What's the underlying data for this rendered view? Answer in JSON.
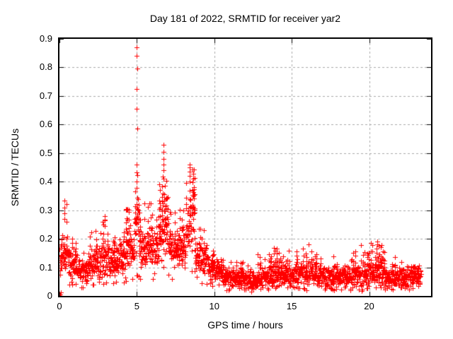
{
  "chart_data": {
    "type": "scatter",
    "title": "Day 181 of 2022, SRMTID for receiver yar2",
    "xlabel": "GPS time / hours",
    "ylabel": "SRMTID / TECUs",
    "xlim": [
      0,
      24
    ],
    "ylim": [
      0,
      0.9
    ],
    "xtick_values": [
      0,
      5,
      10,
      15,
      20
    ],
    "xtick_labels": [
      "0",
      "5",
      "10",
      "15",
      "20"
    ],
    "ytick_values": [
      0,
      0.1,
      0.2,
      0.3,
      0.4,
      0.5,
      0.6,
      0.7,
      0.8,
      0.9
    ],
    "ytick_labels": [
      "0",
      "0.1",
      "0.2",
      "0.3",
      "0.4",
      "0.5",
      "0.6",
      "0.7",
      "0.8",
      "0.9"
    ],
    "grid": true,
    "grid_color": "#a8a8a8",
    "axis_color": "#000000",
    "marker": {
      "shape": "plus",
      "color": "#ff0000",
      "size": 7
    },
    "time_range_hours": [
      0.02,
      23.35
    ],
    "sampling_step_hours": 0.011111,
    "seed": 181,
    "band_profile": [
      [
        0.0,
        0.15,
        0.1,
        0.055,
        0.2,
        0.05
      ],
      [
        0.15,
        0.55,
        0.155,
        0.065,
        0.33,
        0.12
      ],
      [
        0.55,
        1.15,
        0.115,
        0.05,
        0.26,
        0.07
      ],
      [
        1.15,
        1.85,
        0.085,
        0.04,
        0.16,
        0.04
      ],
      [
        1.85,
        2.6,
        0.115,
        0.05,
        0.24,
        0.06
      ],
      [
        2.6,
        3.15,
        0.135,
        0.055,
        0.28,
        0.1
      ],
      [
        3.15,
        4.25,
        0.125,
        0.045,
        0.23,
        0.06
      ],
      [
        4.25,
        4.85,
        0.155,
        0.06,
        0.31,
        0.12
      ],
      [
        4.85,
        5.15,
        0.21,
        0.085,
        0.44,
        0.22
      ],
      [
        5.15,
        6.4,
        0.165,
        0.055,
        0.33,
        0.08
      ],
      [
        6.4,
        7.05,
        0.2,
        0.075,
        0.42,
        0.15
      ],
      [
        7.05,
        8.15,
        0.16,
        0.055,
        0.31,
        0.08
      ],
      [
        8.15,
        8.75,
        0.25,
        0.085,
        0.46,
        0.25
      ],
      [
        8.75,
        9.6,
        0.135,
        0.05,
        0.24,
        0.06
      ],
      [
        9.6,
        10.6,
        0.09,
        0.035,
        0.17,
        0.05
      ],
      [
        10.6,
        11.7,
        0.06,
        0.028,
        0.13,
        0.04
      ],
      [
        11.7,
        12.8,
        0.055,
        0.028,
        0.14,
        0.04
      ],
      [
        12.8,
        14.2,
        0.07,
        0.033,
        0.17,
        0.06
      ],
      [
        14.2,
        15.5,
        0.075,
        0.035,
        0.17,
        0.06
      ],
      [
        15.5,
        16.6,
        0.08,
        0.038,
        0.19,
        0.07
      ],
      [
        16.6,
        18.6,
        0.065,
        0.032,
        0.15,
        0.05
      ],
      [
        18.6,
        19.6,
        0.07,
        0.034,
        0.18,
        0.07
      ],
      [
        19.6,
        21.0,
        0.08,
        0.038,
        0.19,
        0.08
      ],
      [
        21.0,
        22.5,
        0.065,
        0.032,
        0.15,
        0.05
      ],
      [
        22.5,
        23.35,
        0.065,
        0.03,
        0.13,
        0.04
      ]
    ],
    "spike_columns": [
      {
        "t": 0.07,
        "values": [
          0.0,
          0.006,
          0.013
        ]
      },
      {
        "t": 0.32,
        "values": [
          0.335,
          0.31,
          0.29,
          0.27
        ]
      },
      {
        "t": 2.92,
        "values": [
          0.28,
          0.265,
          0.245
        ]
      },
      {
        "t": 5.0,
        "values": [
          0.87,
          0.84,
          0.795,
          0.725,
          0.655,
          0.585,
          0.46
        ]
      },
      {
        "t": 6.72,
        "values": [
          0.53,
          0.505,
          0.48,
          0.46,
          0.44,
          0.41
        ]
      },
      {
        "t": 8.42,
        "values": [
          0.46,
          0.45,
          0.435,
          0.42,
          0.4
        ]
      },
      {
        "t": 20.5,
        "values": [
          0.19,
          0.18,
          0.165,
          0.15
        ]
      }
    ]
  }
}
